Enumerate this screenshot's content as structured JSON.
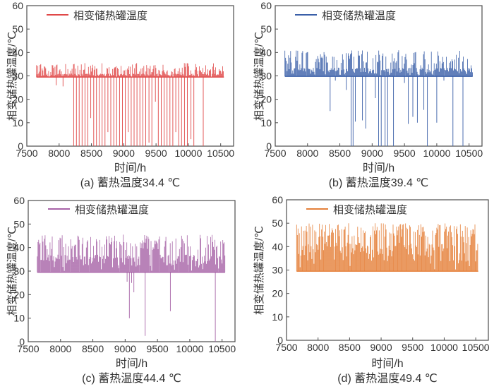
{
  "page": {
    "background": "#ffffff",
    "frame_color": "#4d4d4d",
    "text_color": "#333333"
  },
  "chart_data": [
    {
      "id": "a",
      "type": "line",
      "caption": "(a) 蓄热温度34.4 ℃",
      "storage_temp": "34.4 ℃",
      "legend": "相变储热罐温度",
      "xlabel": "时间/h",
      "ylabel": "相变储热罐温度/℃",
      "color": "#e04848",
      "xlim": [
        7500,
        10700
      ],
      "ylim": [
        0,
        60
      ],
      "x_ticks": [
        7500,
        8000,
        8500,
        9000,
        9500,
        10000,
        10500
      ],
      "y_ticks": [
        0,
        10,
        20,
        30,
        40,
        50,
        60
      ],
      "series_spec": {
        "x_start": 7650,
        "x_end": 10550,
        "step": 11,
        "baseline": 29.5,
        "band_top": 31.0,
        "peak_min": 31.5,
        "peak_max": 35.5,
        "peak_prob": 0.45,
        "seed": 101
      },
      "dropouts": [
        [
          7955,
          26
        ],
        [
          8060,
          25.5
        ],
        [
          8225,
          0
        ],
        [
          8268,
          0
        ],
        [
          8310,
          0
        ],
        [
          8355,
          0
        ],
        [
          8400,
          0
        ],
        [
          8445,
          0
        ],
        [
          8490,
          12
        ],
        [
          8535,
          0
        ],
        [
          8578,
          0
        ],
        [
          8620,
          0
        ],
        [
          8665,
          0
        ],
        [
          8710,
          0
        ],
        [
          8755,
          6
        ],
        [
          8800,
          0
        ],
        [
          8845,
          0
        ],
        [
          8890,
          0
        ],
        [
          8935,
          0
        ],
        [
          8980,
          0
        ],
        [
          9025,
          0
        ],
        [
          9070,
          6
        ],
        [
          9115,
          0
        ],
        [
          9160,
          0
        ],
        [
          9205,
          0
        ],
        [
          9250,
          0
        ],
        [
          9295,
          0
        ],
        [
          9340,
          0
        ],
        [
          9390,
          1.5
        ],
        [
          9435,
          0
        ],
        [
          9490,
          19
        ],
        [
          9535,
          0
        ],
        [
          9580,
          0
        ],
        [
          9625,
          0
        ],
        [
          9670,
          0
        ],
        [
          9715,
          0
        ],
        [
          9760,
          0
        ],
        [
          9805,
          6
        ],
        [
          9850,
          0
        ],
        [
          9895,
          0
        ],
        [
          9940,
          0
        ],
        [
          9985,
          0
        ],
        [
          10040,
          3
        ],
        [
          10085,
          0
        ],
        [
          10230,
          0
        ]
      ]
    },
    {
      "id": "b",
      "type": "line",
      "caption": "(b) 蓄热温度39.4 ℃",
      "storage_temp": "39.4 ℃",
      "legend": "相变储热罐温度",
      "xlabel": "时间/h",
      "ylabel": "相变储热罐温度/℃",
      "color": "#3a5fa8",
      "xlim": [
        7500,
        10700
      ],
      "ylim": [
        0,
        60
      ],
      "x_ticks": [
        7500,
        8000,
        8500,
        9000,
        9500,
        10000,
        10500
      ],
      "y_ticks": [
        0,
        10,
        20,
        30,
        40,
        50,
        60
      ],
      "series_spec": {
        "x_start": 7650,
        "x_end": 10555,
        "step": 11,
        "baseline": 29.8,
        "band_top": 33.5,
        "peak_min": 34.5,
        "peak_max": 41.0,
        "peak_prob": 0.45,
        "seed": 202
      },
      "dropouts": [
        [
          8350,
          15
        ],
        [
          8430,
          28
        ],
        [
          8600,
          24
        ],
        [
          8675,
          0
        ],
        [
          8705,
          0
        ],
        [
          8740,
          10.5
        ],
        [
          8850,
          11
        ],
        [
          8900,
          7.5
        ],
        [
          9050,
          20.5
        ],
        [
          9100,
          0
        ],
        [
          9140,
          0
        ],
        [
          9200,
          0
        ],
        [
          9240,
          0
        ],
        [
          9330,
          0
        ],
        [
          9500,
          27
        ],
        [
          9560,
          9.5
        ],
        [
          9630,
          12.5
        ],
        [
          9700,
          10
        ],
        [
          9800,
          15.5
        ],
        [
          9855,
          0
        ],
        [
          10000,
          10
        ],
        [
          10110,
          28
        ],
        [
          10250,
          0
        ],
        [
          10405,
          0
        ]
      ]
    },
    {
      "id": "c",
      "type": "line",
      "caption": "(c) 蓄热温度44.4 ℃",
      "storage_temp": "44.4 ℃",
      "legend": "相变储热罐温度",
      "xlabel": "时间/h",
      "ylabel": "相变储热罐温度/℃",
      "color": "#a763a7",
      "xlim": [
        7500,
        10700
      ],
      "ylim": [
        0,
        60
      ],
      "x_ticks": [
        7500,
        8000,
        8500,
        9000,
        9500,
        10000,
        10500
      ],
      "y_ticks": [
        0,
        10,
        20,
        30,
        40,
        50,
        60
      ],
      "series_spec": {
        "x_start": 7640,
        "x_end": 10545,
        "step": 11,
        "baseline": 29.5,
        "band_top": 37.0,
        "peak_min": 39.0,
        "peak_max": 45.5,
        "peak_prob": 0.45,
        "seed": 303
      },
      "dropouts": [
        [
          9030,
          25.5
        ],
        [
          9065,
          10
        ],
        [
          9100,
          25
        ],
        [
          9135,
          21
        ],
        [
          9310,
          2.5
        ],
        [
          9700,
          13
        ],
        [
          10395,
          0
        ]
      ]
    },
    {
      "id": "d",
      "type": "line",
      "caption": "(d) 蓄热温度49.4 ℃",
      "storage_temp": "49.4 ℃",
      "legend": "相变储热罐温度",
      "xlabel": "时间/h",
      "ylabel": "相变储热罐温度/℃",
      "color": "#e5803a",
      "xlim": [
        7500,
        10700
      ],
      "ylim": [
        0,
        60
      ],
      "x_ticks": [
        7500,
        8000,
        8500,
        9000,
        9500,
        10000,
        10500
      ],
      "y_ticks": [
        0,
        10,
        20,
        30,
        40,
        50,
        60
      ],
      "series_spec": {
        "x_start": 7660,
        "x_end": 10540,
        "step": 11,
        "baseline": 29.5,
        "band_top": 42.0,
        "peak_min": 44.0,
        "peak_max": 50.0,
        "peak_prob": 0.5,
        "seed": 404
      },
      "dropouts": []
    }
  ]
}
